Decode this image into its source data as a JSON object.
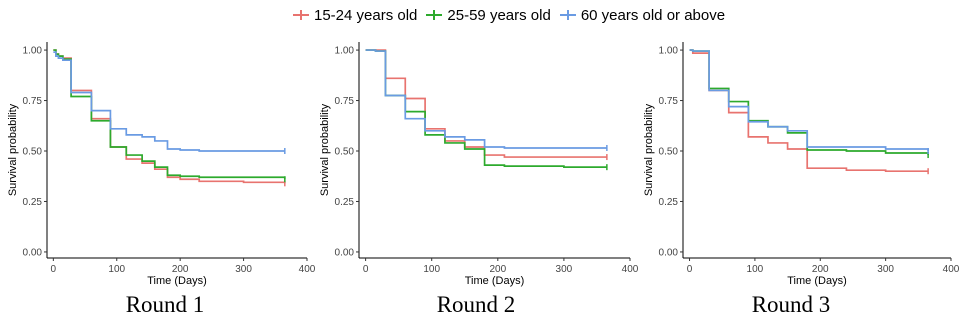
{
  "legend": {
    "items": [
      {
        "label": "15-24 years old",
        "color": "#E8736F"
      },
      {
        "label": "25-59 years old",
        "color": "#2DAA2D"
      },
      {
        "label": "60 years old or above",
        "color": "#6A9BE3"
      }
    ]
  },
  "chart_data": [
    {
      "type": "line",
      "step": true,
      "title": "Round 1",
      "xlabel": "Time (Days)",
      "ylabel": "Survival probability",
      "xlim": [
        -10,
        400
      ],
      "ylim": [
        -0.03,
        1.04
      ],
      "xticks": [
        0,
        100,
        200,
        300,
        400
      ],
      "yticks": [
        "0.00",
        "0.25",
        "0.50",
        "0.75",
        "1.00"
      ],
      "grid": false,
      "series": [
        {
          "name": "15-24 years old",
          "color": "#E8736F",
          "x": [
            0,
            4,
            8,
            15,
            28,
            60,
            90,
            115,
            140,
            160,
            180,
            200,
            230,
            260,
            300,
            365
          ],
          "y": [
            1.0,
            0.98,
            0.97,
            0.96,
            0.8,
            0.66,
            0.52,
            0.46,
            0.44,
            0.41,
            0.37,
            0.36,
            0.35,
            0.35,
            0.345,
            0.34
          ]
        },
        {
          "name": "25-59 years old",
          "color": "#2DAA2D",
          "x": [
            0,
            4,
            8,
            15,
            28,
            60,
            90,
            115,
            140,
            160,
            180,
            200,
            230,
            300,
            365
          ],
          "y": [
            1.0,
            0.98,
            0.97,
            0.955,
            0.77,
            0.65,
            0.52,
            0.48,
            0.45,
            0.42,
            0.38,
            0.375,
            0.37,
            0.37,
            0.36
          ]
        },
        {
          "name": "60 years old or above",
          "color": "#6A9BE3",
          "x": [
            0,
            4,
            8,
            15,
            28,
            60,
            90,
            115,
            140,
            160,
            180,
            200,
            230,
            300,
            365
          ],
          "y": [
            0.99,
            0.97,
            0.96,
            0.95,
            0.79,
            0.7,
            0.61,
            0.58,
            0.57,
            0.55,
            0.51,
            0.505,
            0.5,
            0.5,
            0.5
          ]
        }
      ]
    },
    {
      "type": "line",
      "step": true,
      "title": "Round 2",
      "xlabel": "Time (Days)",
      "ylabel": "Survival probability",
      "xlim": [
        -10,
        400
      ],
      "ylim": [
        -0.03,
        1.04
      ],
      "xticks": [
        0,
        100,
        200,
        300,
        400
      ],
      "yticks": [
        "0.00",
        "0.25",
        "0.50",
        "0.75",
        "1.00"
      ],
      "grid": false,
      "series": [
        {
          "name": "15-24 years old",
          "color": "#E8736F",
          "x": [
            0,
            15,
            30,
            60,
            90,
            120,
            150,
            180,
            210,
            300,
            365
          ],
          "y": [
            1.0,
            1.0,
            0.86,
            0.76,
            0.61,
            0.55,
            0.52,
            0.48,
            0.47,
            0.47,
            0.47
          ]
        },
        {
          "name": "25-59 years old",
          "color": "#2DAA2D",
          "x": [
            0,
            15,
            30,
            60,
            90,
            120,
            150,
            180,
            210,
            300,
            365
          ],
          "y": [
            1.0,
            0.995,
            0.775,
            0.695,
            0.58,
            0.54,
            0.51,
            0.43,
            0.425,
            0.42,
            0.42
          ]
        },
        {
          "name": "60 years old or above",
          "color": "#6A9BE3",
          "x": [
            0,
            15,
            30,
            60,
            90,
            120,
            150,
            180,
            210,
            300,
            365
          ],
          "y": [
            1.0,
            0.995,
            0.775,
            0.66,
            0.6,
            0.57,
            0.555,
            0.52,
            0.515,
            0.515,
            0.515
          ]
        }
      ]
    },
    {
      "type": "line",
      "step": true,
      "title": "Round 3",
      "xlabel": "Time (Days)",
      "ylabel": "Survival probability",
      "xlim": [
        -10,
        400
      ],
      "ylim": [
        -0.03,
        1.04
      ],
      "xticks": [
        0,
        100,
        200,
        300,
        400
      ],
      "yticks": [
        "0.00",
        "0.25",
        "0.50",
        "0.75",
        "1.00"
      ],
      "grid": false,
      "series": [
        {
          "name": "15-24 years old",
          "color": "#E8736F",
          "x": [
            0,
            5,
            30,
            60,
            90,
            120,
            150,
            180,
            240,
            300,
            365
          ],
          "y": [
            1.0,
            0.985,
            0.8,
            0.69,
            0.57,
            0.54,
            0.51,
            0.415,
            0.405,
            0.4,
            0.4
          ]
        },
        {
          "name": "25-59 years old",
          "color": "#2DAA2D",
          "x": [
            0,
            5,
            30,
            60,
            90,
            120,
            150,
            180,
            240,
            300,
            365
          ],
          "y": [
            1.0,
            0.995,
            0.81,
            0.745,
            0.65,
            0.62,
            0.59,
            0.505,
            0.5,
            0.49,
            0.48
          ]
        },
        {
          "name": "60 years old or above",
          "color": "#6A9BE3",
          "x": [
            0,
            5,
            30,
            60,
            90,
            120,
            150,
            180,
            240,
            300,
            365
          ],
          "y": [
            1.0,
            0.995,
            0.8,
            0.72,
            0.645,
            0.62,
            0.6,
            0.52,
            0.52,
            0.51,
            0.5
          ]
        }
      ]
    }
  ]
}
